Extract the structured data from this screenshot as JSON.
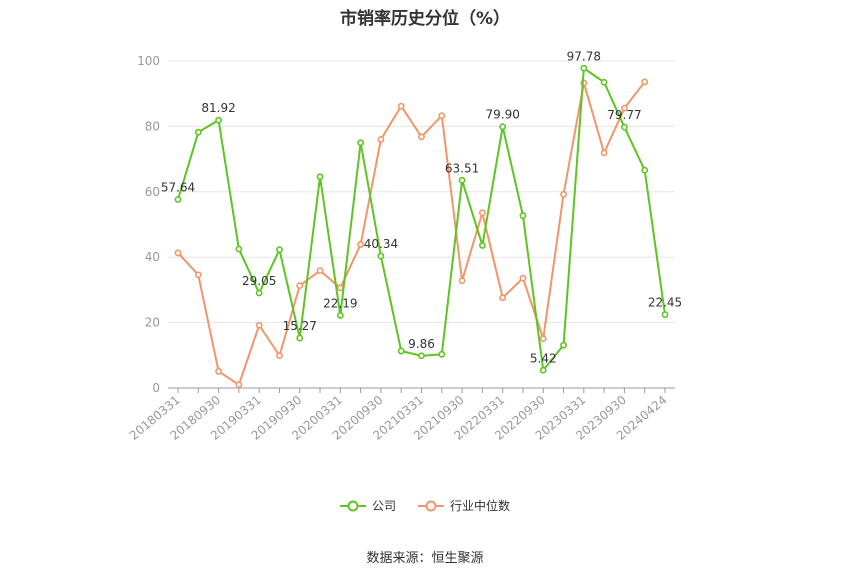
{
  "title": "市销率历史分位（%）",
  "source": "数据来源：恒生聚源",
  "chart_data": {
    "type": "line",
    "ylim": [
      0,
      100
    ],
    "yticks": [
      0,
      20,
      40,
      60,
      80,
      100
    ],
    "x": [
      "20180331",
      "20180630",
      "20180930",
      "20181231",
      "20190331",
      "20190630",
      "20190930",
      "20191231",
      "20200331",
      "20200630",
      "20200930",
      "20201231",
      "20210331",
      "20210630",
      "20210930",
      "20211231",
      "20220331",
      "20220630",
      "20220930",
      "20221231",
      "20230331",
      "20230630",
      "20230930",
      "20231231",
      "20240424"
    ],
    "tick_labels": [
      "20180331",
      "20180930",
      "20190331",
      "20190930",
      "20200331",
      "20200930",
      "20210331",
      "20210930",
      "20220331",
      "20220930",
      "20230331",
      "20230930",
      "20240424"
    ],
    "grid": true,
    "legend_position": "bottom",
    "series": [
      {
        "name": "公司",
        "color": "#5ec422",
        "values": [
          57.64,
          78.2,
          81.92,
          42.5,
          29.05,
          42.3,
          15.27,
          64.6,
          22.19,
          75.0,
          40.34,
          11.3,
          9.86,
          10.3,
          63.51,
          43.6,
          79.9,
          52.7,
          5.42,
          13.1,
          97.78,
          93.5,
          79.77,
          66.6,
          22.45
        ],
        "labels": {
          "0": "57.64",
          "2": "81.92",
          "4": "29.05",
          "6": "15.27",
          "8": "22.19",
          "10": "40.34",
          "12": "9.86",
          "14": "63.51",
          "16": "79.90",
          "18": "5.42",
          "20": "97.78",
          "22": "79.77",
          "24": "22.45"
        }
      },
      {
        "name": "行业中位数",
        "color": "#f2956a",
        "values": [
          41.3,
          34.6,
          5.1,
          1.0,
          19.2,
          9.9,
          31.3,
          35.9,
          30.6,
          43.9,
          76.0,
          86.2,
          76.8,
          83.3,
          32.8,
          53.6,
          27.6,
          33.6,
          15.1,
          59.2,
          93.3,
          71.9,
          85.6,
          93.6,
          null
        ]
      }
    ]
  }
}
